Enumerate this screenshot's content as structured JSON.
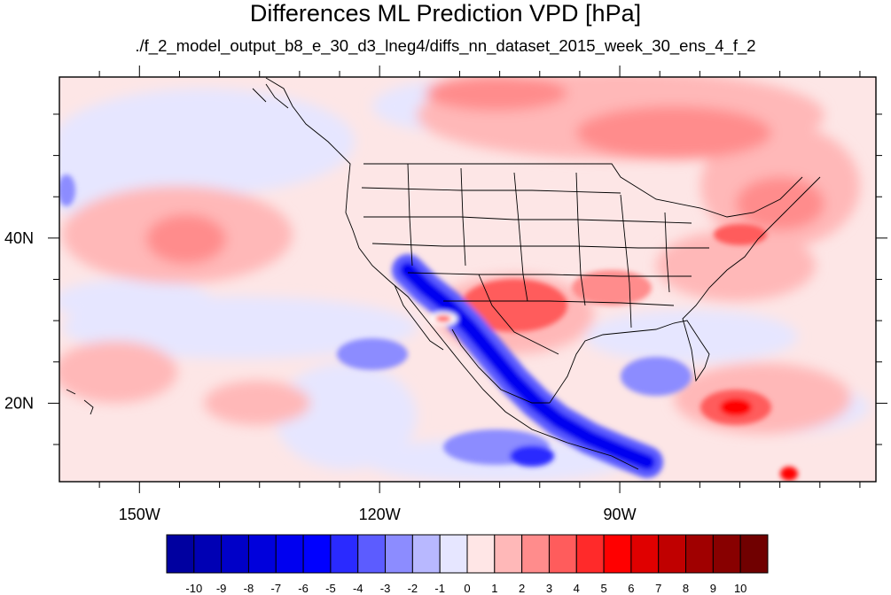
{
  "title": "Differences ML Prediction VPD [hPa]",
  "subtitle": "./f_2_model_output_b8_e_30_d3_lneg4/diffs_nn_dataset_2015_week_30_ens_4_f_2",
  "map": {
    "projection": "cylindrical-equidistant",
    "lon_range": [
      -160,
      -58
    ],
    "lat_range": [
      10.5,
      59.5
    ],
    "lon_ticks": [
      {
        "value": -150,
        "label": "150W"
      },
      {
        "value": -120,
        "label": "120W"
      },
      {
        "value": -90,
        "label": "90W"
      }
    ],
    "lat_ticks": [
      {
        "value": 40,
        "label": "40N"
      },
      {
        "value": 20,
        "label": "20N"
      }
    ],
    "background_color": "#fde6e6"
  },
  "colorbar": {
    "labels": [
      "-10",
      "-9",
      "-8",
      "-7",
      "-6",
      "-5",
      "-4",
      "-3",
      "-2",
      "-1",
      "0",
      "1",
      "2",
      "3",
      "4",
      "5",
      "6",
      "7",
      "8",
      "9",
      "10"
    ],
    "colors": [
      "#0000a0",
      "#0000b4",
      "#0000c8",
      "#0000dc",
      "#0000f0",
      "#0000ff",
      "#2a2aff",
      "#5c5cff",
      "#8c8cff",
      "#b8b8ff",
      "#e6e6ff",
      "#ffe6e6",
      "#ffb8b8",
      "#ff8c8c",
      "#ff5c5c",
      "#ff2a2a",
      "#ff0000",
      "#e00000",
      "#c00000",
      "#a00000",
      "#880000",
      "#700000"
    ]
  }
}
